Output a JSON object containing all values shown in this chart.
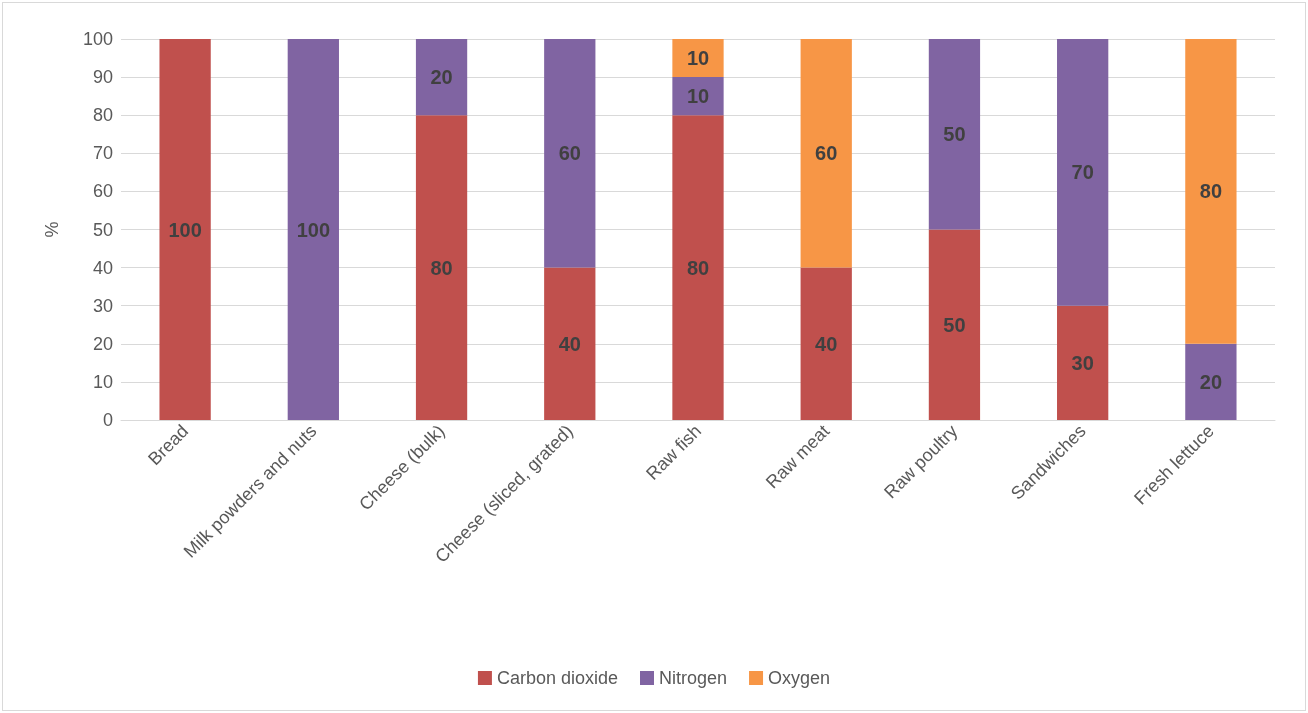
{
  "chart_data": {
    "type": "bar",
    "stacked": true,
    "ylabel": "%",
    "categories": [
      "Bread",
      "Milk powders and nuts",
      "Cheese (bulk)",
      "Cheese (sliced, grated)",
      "Raw fish",
      "Raw meat",
      "Raw poultry",
      "Sandwiches",
      "Fresh lettuce"
    ],
    "series": [
      {
        "name": "Carbon dioxide",
        "color": "#c0504d",
        "values": [
          100,
          null,
          80,
          40,
          80,
          40,
          50,
          30,
          null
        ]
      },
      {
        "name": "Nitrogen",
        "color": "#8064a2",
        "values": [
          null,
          100,
          20,
          60,
          10,
          null,
          50,
          70,
          20
        ]
      },
      {
        "name": "Oxygen",
        "color": "#f79646",
        "values": [
          null,
          null,
          null,
          null,
          10,
          60,
          null,
          null,
          80
        ]
      }
    ],
    "ylim": [
      0,
      100
    ],
    "yticks": [
      0,
      10,
      20,
      30,
      40,
      50,
      60,
      70,
      80,
      90,
      100
    ],
    "grid": "y",
    "legend": "bottom",
    "data_labels": true
  }
}
